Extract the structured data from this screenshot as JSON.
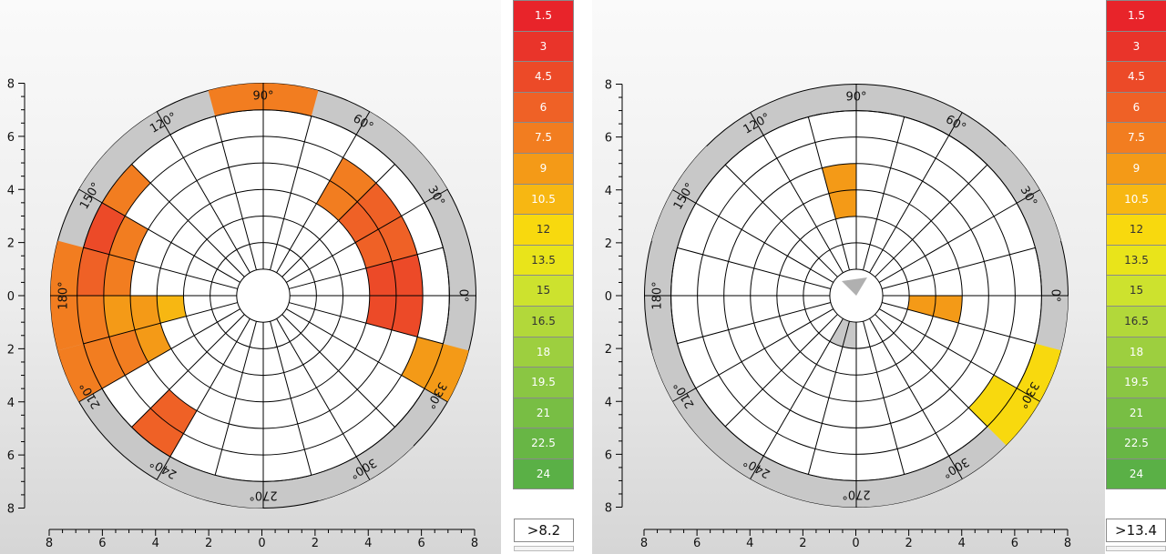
{
  "legend": {
    "values": [
      "1.5",
      "3",
      "4.5",
      "6",
      "7.5",
      "9",
      "10.5",
      "12",
      "13.5",
      "15",
      "16.5",
      "18",
      "19.5",
      "21",
      "22.5",
      "24"
    ],
    "colors": [
      "#e8242a",
      "#e9342a",
      "#ec4a28",
      "#ef6126",
      "#f27d20",
      "#f49a17",
      "#f7b712",
      "#f8d90e",
      "#e9e41a",
      "#cde22e",
      "#b2d83a",
      "#9dcf3f",
      "#8ac643",
      "#78be44",
      "#68b645",
      "#5ab046"
    ]
  },
  "chart_data": [
    {
      "type": "polar-heatmap",
      "name": "left",
      "threshold": ">8.2",
      "axis_ticks": [
        "8",
        "6",
        "4",
        "2",
        "0",
        "2",
        "4",
        "6",
        "8"
      ],
      "angle_labels": [
        "0°",
        "30°",
        "60°",
        "90°",
        "120°",
        "150°",
        "180°",
        "210°",
        "240°",
        "270°",
        "300°",
        "330°"
      ],
      "rings": [
        1,
        2,
        3,
        4,
        5,
        6,
        7,
        8
      ],
      "sector_step_deg": 15,
      "colored_cells": [
        {
          "ring": 3,
          "sector": 12,
          "level": 6
        },
        {
          "ring": 4,
          "sector": 12,
          "level": 5
        },
        {
          "ring": 4,
          "sector": 13,
          "level": 5
        },
        {
          "ring": 5,
          "sector": 10,
          "level": 4
        },
        {
          "ring": 5,
          "sector": 11,
          "level": 4
        },
        {
          "ring": 5,
          "sector": 12,
          "level": 5
        },
        {
          "ring": 5,
          "sector": 13,
          "level": 4
        },
        {
          "ring": 6,
          "sector": 9,
          "level": 4
        },
        {
          "ring": 6,
          "sector": 10,
          "level": 2
        },
        {
          "ring": 6,
          "sector": 11,
          "level": 3
        },
        {
          "ring": 6,
          "sector": 12,
          "level": 4
        },
        {
          "ring": 6,
          "sector": 13,
          "level": 4
        },
        {
          "ring": 7,
          "sector": 5,
          "level": 4
        },
        {
          "ring": 7,
          "sector": 6,
          "level": 4
        },
        {
          "ring": 7,
          "sector": 11,
          "level": 4
        },
        {
          "ring": 7,
          "sector": 12,
          "level": 4
        },
        {
          "ring": 7,
          "sector": 13,
          "level": 4
        },
        {
          "ring": 4,
          "sector": 0,
          "level": 2
        },
        {
          "ring": 4,
          "sector": 23,
          "level": 2
        },
        {
          "ring": 4,
          "sector": 1,
          "level": 3
        },
        {
          "ring": 4,
          "sector": 2,
          "level": 3
        },
        {
          "ring": 4,
          "sector": 3,
          "level": 4
        },
        {
          "ring": 5,
          "sector": 0,
          "level": 2
        },
        {
          "ring": 5,
          "sector": 23,
          "level": 2
        },
        {
          "ring": 5,
          "sector": 1,
          "level": 3
        },
        {
          "ring": 5,
          "sector": 2,
          "level": 3
        },
        {
          "ring": 5,
          "sector": 3,
          "level": 4
        },
        {
          "ring": 6,
          "sector": 22,
          "level": 5
        },
        {
          "ring": 7,
          "sector": 22,
          "level": 5
        },
        {
          "ring": 5,
          "sector": 15,
          "level": 3
        },
        {
          "ring": 6,
          "sector": 15,
          "level": 3
        }
      ],
      "gray_cells": [
        {
          "ring": 7,
          "sector": 2
        },
        {
          "ring": 7,
          "sector": 3
        },
        {
          "ring": 7,
          "sector": 8
        },
        {
          "ring": 7,
          "sector": 9
        },
        {
          "ring": 7,
          "sector": 16
        },
        {
          "ring": 7,
          "sector": 17
        },
        {
          "ring": 7,
          "sector": 19
        },
        {
          "ring": 7,
          "sector": 20
        }
      ]
    },
    {
      "type": "polar-heatmap",
      "name": "right",
      "threshold": ">13.4",
      "axis_ticks": [
        "8",
        "6",
        "4",
        "2",
        "0",
        "2",
        "4",
        "6",
        "8"
      ],
      "angle_labels": [
        "0°",
        "30°",
        "60°",
        "90°",
        "120°",
        "150°",
        "180°",
        "210°",
        "240°",
        "270°",
        "300°",
        "330°"
      ],
      "rings": [
        1,
        2,
        3,
        4,
        5,
        6,
        7,
        8
      ],
      "sector_step_deg": 15,
      "colored_cells": [
        {
          "ring": 3,
          "sector": 6,
          "level": 5
        },
        {
          "ring": 4,
          "sector": 6,
          "level": 5
        },
        {
          "ring": 2,
          "sector": 23,
          "level": 5
        },
        {
          "ring": 3,
          "sector": 23,
          "level": 5
        },
        {
          "ring": 6,
          "sector": 21,
          "level": 7
        },
        {
          "ring": 7,
          "sector": 21,
          "level": 7
        },
        {
          "ring": 7,
          "sector": 22,
          "level": 7
        }
      ],
      "gray_cells": [
        {
          "ring": 1,
          "sector": 16
        },
        {
          "ring": 1,
          "sector": 17
        },
        {
          "ring": 7,
          "sector": 1
        },
        {
          "ring": 7,
          "sector": 2
        },
        {
          "ring": 7,
          "sector": 9
        },
        {
          "ring": 7,
          "sector": 10
        },
        {
          "ring": 7,
          "sector": 13
        },
        {
          "ring": 7,
          "sector": 14
        },
        {
          "ring": 7,
          "sector": 15
        },
        {
          "ring": 7,
          "sector": 16
        },
        {
          "ring": 7,
          "sector": 17
        },
        {
          "ring": 7,
          "sector": 18
        },
        {
          "ring": 7,
          "sector": 19
        },
        {
          "ring": 7,
          "sector": 20
        },
        {
          "ring": 7,
          "sector": 23
        }
      ]
    }
  ]
}
